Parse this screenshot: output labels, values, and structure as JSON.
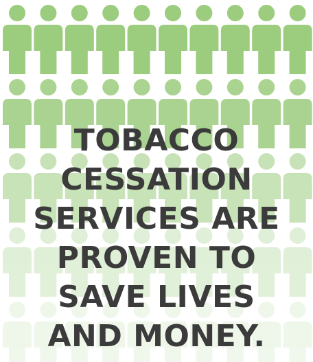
{
  "headline": {
    "line1": "TOBACCO",
    "line2": "CESSATION",
    "line3": "SERVICES ARE",
    "line4": "PROVEN TO",
    "line5": "SAVE LIVES",
    "line6": "AND MONEY."
  },
  "figures": {
    "icon": "person-icon",
    "color": "#9ccc7e",
    "columns": 10,
    "rows": 5
  }
}
